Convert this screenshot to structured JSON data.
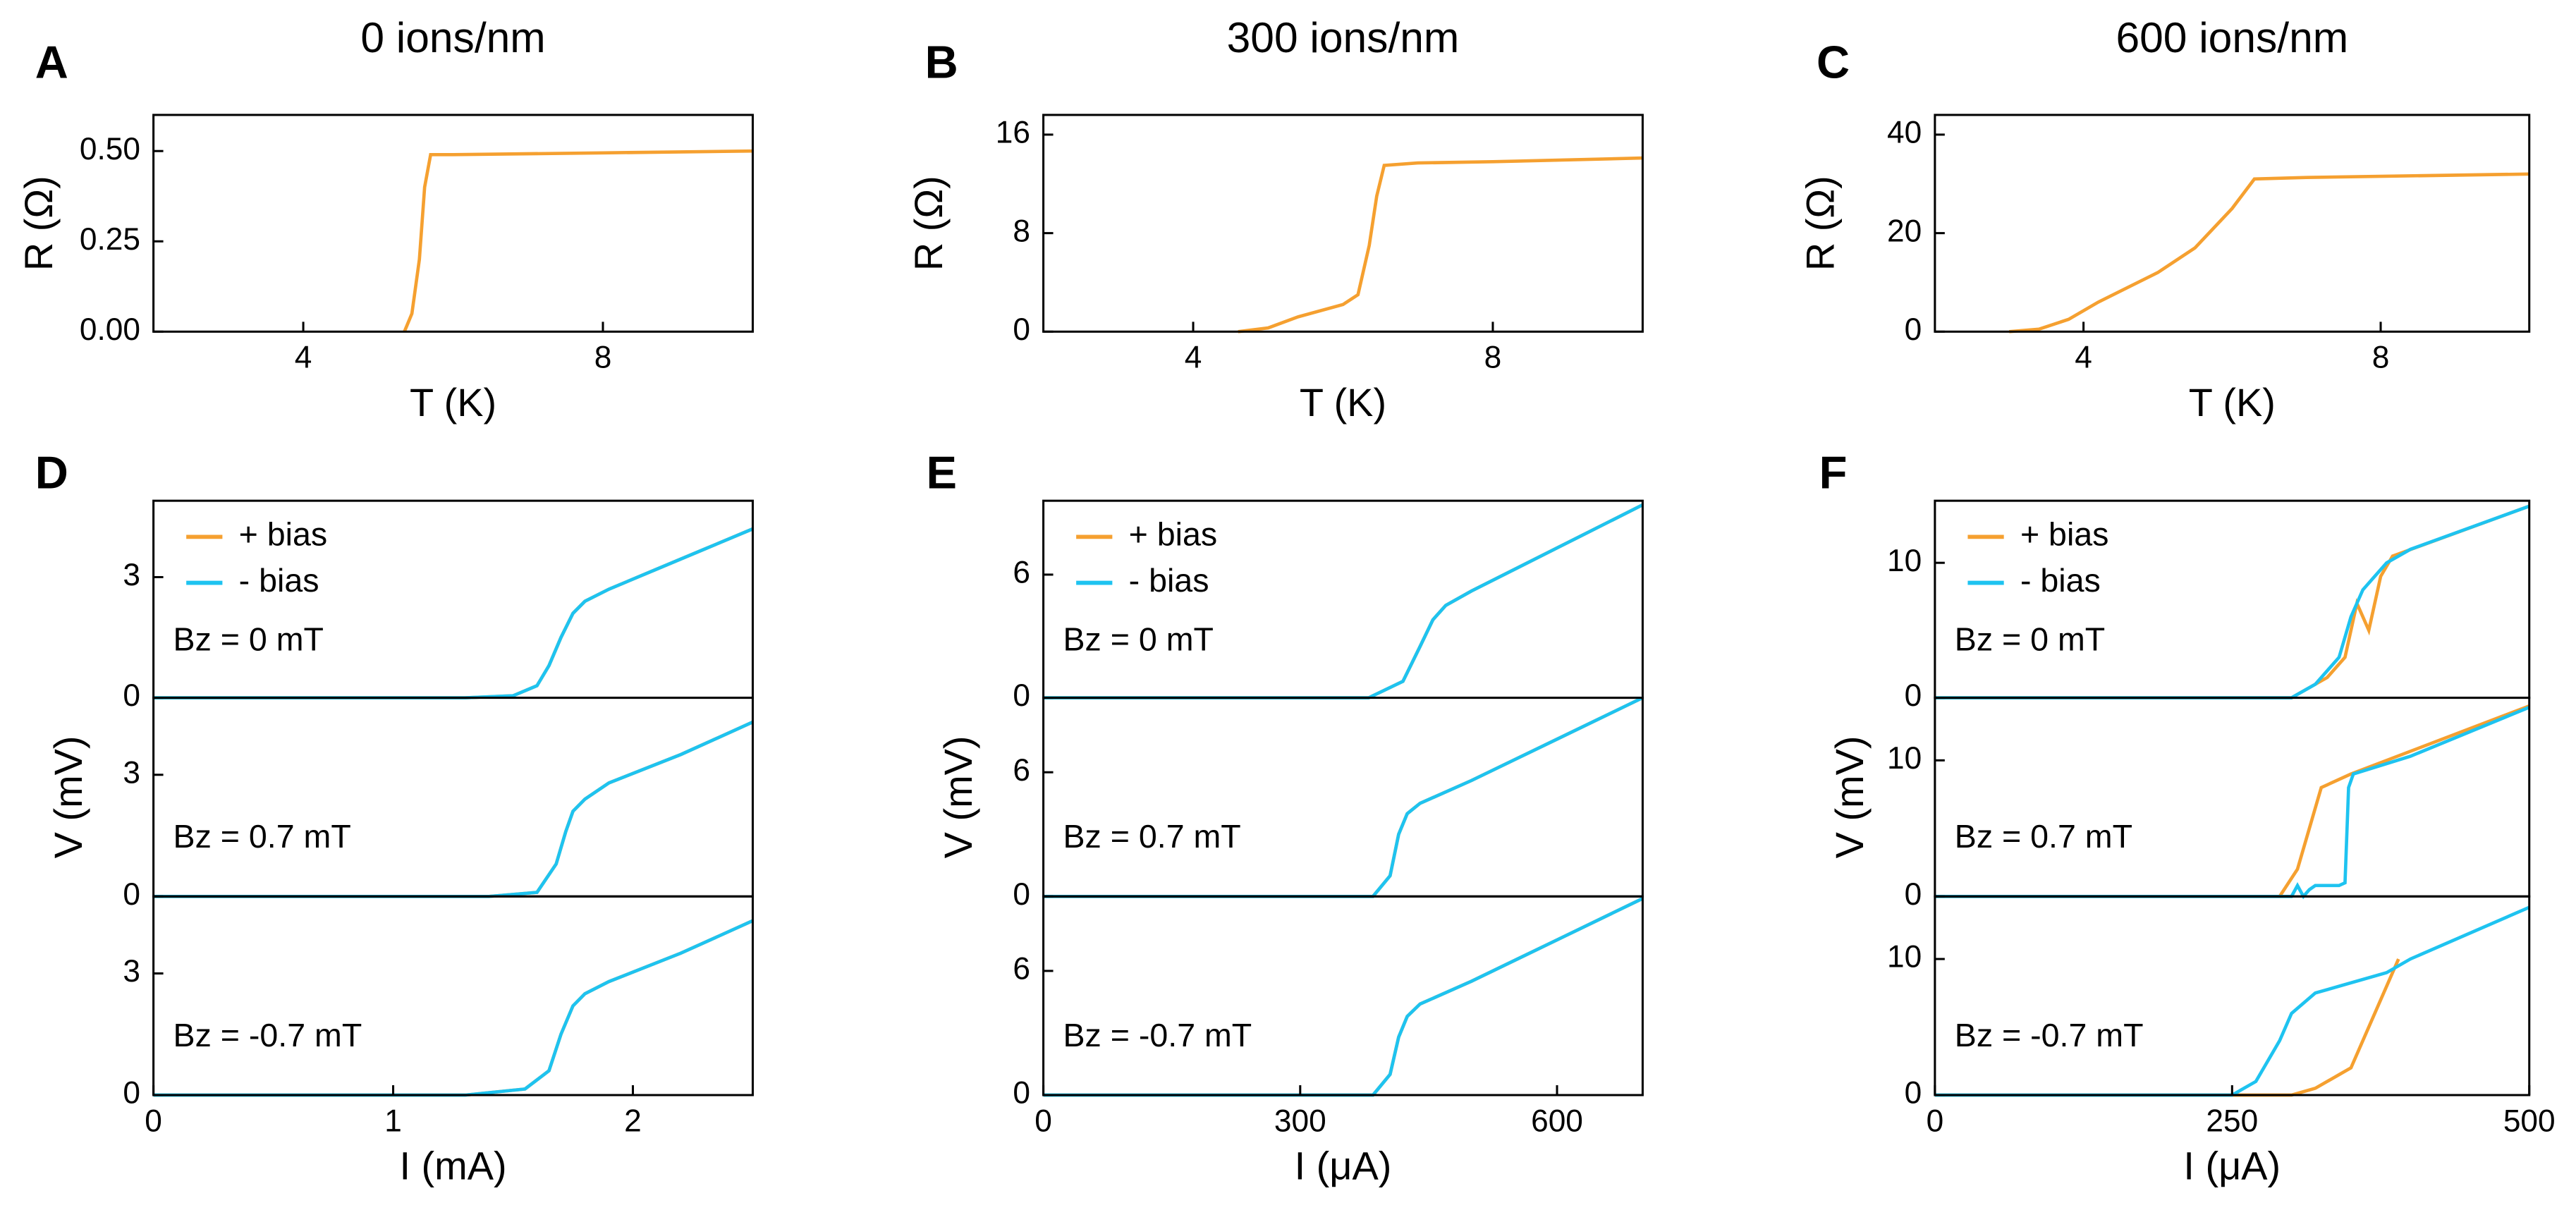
{
  "chart_data": [
    {
      "type": "line",
      "panel": "A",
      "title": "0 ions/nm",
      "x_label": "T (K)",
      "y_label": "R (Ω)",
      "xlim": [
        2,
        10
      ],
      "ylim": [
        0,
        0.6
      ],
      "xticks": [
        4,
        8
      ],
      "yticks": [
        {
          "value": 0,
          "label": "0.00"
        },
        {
          "value": 0.25,
          "label": "0.25"
        },
        {
          "value": 0.5,
          "label": "0.50"
        }
      ],
      "series": [
        {
          "color": "#f5a030",
          "x": [
            5.35,
            5.45,
            5.55,
            5.62,
            5.7,
            6,
            8,
            10
          ],
          "values": [
            0,
            0.05,
            0.2,
            0.4,
            0.49,
            0.49,
            0.495,
            0.5
          ]
        }
      ]
    },
    {
      "type": "line",
      "panel": "B",
      "title": "300 ions/nm",
      "x_label": "T (K)",
      "y_label": "R (Ω)",
      "xlim": [
        2,
        10
      ],
      "ylim": [
        0,
        17.6
      ],
      "xticks": [
        4,
        8
      ],
      "yticks": [
        0,
        8,
        16
      ],
      "series": [
        {
          "color": "#f5a030",
          "x": [
            4.6,
            5,
            5.4,
            6,
            6.2,
            6.35,
            6.45,
            6.55,
            7,
            8,
            10
          ],
          "values": [
            0,
            0.3,
            1.2,
            2.2,
            3,
            7,
            11,
            13.5,
            13.7,
            13.8,
            14.1
          ]
        }
      ]
    },
    {
      "type": "line",
      "panel": "C",
      "title": "600 ions/nm",
      "x_label": "T (K)",
      "y_label": "R (Ω)",
      "xlim": [
        2,
        10
      ],
      "ylim": [
        0,
        44
      ],
      "xticks": [
        4,
        8
      ],
      "yticks": [
        0,
        20,
        40
      ],
      "series": [
        {
          "color": "#f5a030",
          "x": [
            3,
            3.4,
            3.8,
            4.2,
            4.6,
            5,
            5.5,
            6,
            6.3,
            7,
            10
          ],
          "values": [
            0,
            0.5,
            2.5,
            6,
            9,
            12,
            17,
            25,
            31,
            31.3,
            32
          ]
        }
      ]
    },
    {
      "type": "line",
      "panel": "D",
      "annotation": "Bz = 0 mT",
      "xlim": [
        0,
        2.5
      ],
      "ylim": [
        0,
        4.9
      ],
      "yticks": [
        0,
        3
      ],
      "series": [
        {
          "name": "+ bias",
          "color": "#f5a030",
          "x": [
            0,
            1.3,
            1.5,
            1.6,
            1.65,
            1.7,
            1.75,
            1.8,
            1.9,
            2.1,
            2.3,
            2.5
          ],
          "values": [
            0,
            0,
            0.05,
            0.3,
            0.8,
            1.5,
            2.1,
            2.4,
            2.7,
            3.2,
            3.7,
            4.2
          ]
        },
        {
          "name": "- bias",
          "color": "#1ec3f0",
          "x": [
            0,
            1.3,
            1.5,
            1.6,
            1.65,
            1.7,
            1.75,
            1.8,
            1.9,
            2.1,
            2.3,
            2.5
          ],
          "values": [
            0,
            0,
            0.05,
            0.3,
            0.8,
            1.5,
            2.1,
            2.4,
            2.7,
            3.2,
            3.7,
            4.2
          ]
        }
      ]
    },
    {
      "type": "line",
      "annotation": "Bz = 0.7 mT",
      "y_label": "V (mV)",
      "xlim": [
        0,
        2.5
      ],
      "ylim": [
        0,
        4.9
      ],
      "yticks": [
        0,
        3
      ],
      "series": [
        {
          "color": "#f5a030",
          "x": [
            0,
            1.4,
            1.6,
            1.68,
            1.72,
            1.75,
            1.8,
            1.9,
            2.2,
            2.5
          ],
          "values": [
            0,
            0,
            0.1,
            0.8,
            1.6,
            2.1,
            2.4,
            2.8,
            3.5,
            4.3
          ]
        },
        {
          "color": "#1ec3f0",
          "x": [
            0,
            1.4,
            1.6,
            1.68,
            1.72,
            1.75,
            1.8,
            1.9,
            2.2,
            2.5
          ],
          "values": [
            0,
            0,
            0.1,
            0.8,
            1.6,
            2.1,
            2.4,
            2.8,
            3.5,
            4.3
          ]
        }
      ]
    },
    {
      "type": "line",
      "annotation": "Bz = -0.7 mT",
      "x_label": "I (mA)",
      "xlim": [
        0,
        2.5
      ],
      "ylim": [
        0,
        4.9
      ],
      "xticks": [
        0,
        1,
        2
      ],
      "yticks": [
        0,
        3
      ],
      "series": [
        {
          "color": "#f5a030",
          "x": [
            0,
            1.3,
            1.55,
            1.65,
            1.7,
            1.75,
            1.8,
            1.9,
            2.2,
            2.5
          ],
          "values": [
            0,
            0,
            0.15,
            0.6,
            1.5,
            2.2,
            2.5,
            2.8,
            3.5,
            4.3
          ]
        },
        {
          "color": "#1ec3f0",
          "x": [
            0,
            1.3,
            1.55,
            1.65,
            1.7,
            1.75,
            1.8,
            1.9,
            2.2,
            2.5
          ],
          "values": [
            0,
            0,
            0.15,
            0.6,
            1.5,
            2.2,
            2.5,
            2.8,
            3.5,
            4.3
          ]
        }
      ]
    },
    {
      "type": "line",
      "panel": "E",
      "annotation": "Bz = 0 mT",
      "xlim": [
        0,
        700
      ],
      "ylim": [
        0,
        9.6
      ],
      "yticks": [
        0,
        6
      ],
      "series": [
        {
          "name": "+ bias",
          "color": "#f5a030",
          "x": [
            0,
            380,
            420,
            440,
            455,
            470,
            500,
            600,
            700
          ],
          "values": [
            0,
            0,
            0.8,
            2.5,
            3.8,
            4.5,
            5.2,
            7.3,
            9.4
          ]
        },
        {
          "name": "- bias",
          "color": "#1ec3f0",
          "x": [
            0,
            380,
            420,
            440,
            455,
            470,
            500,
            600,
            700
          ],
          "values": [
            0,
            0,
            0.8,
            2.5,
            3.8,
            4.5,
            5.2,
            7.3,
            9.4
          ]
        }
      ]
    },
    {
      "type": "line",
      "annotation": "Bz = 0.7 mT",
      "y_label": "V (mV)",
      "xlim": [
        0,
        700
      ],
      "ylim": [
        0,
        9.6
      ],
      "yticks": [
        0,
        6
      ],
      "series": [
        {
          "color": "#f5a030",
          "x": [
            0,
            385,
            405,
            415,
            425,
            440,
            500,
            600,
            700
          ],
          "values": [
            0,
            0,
            1,
            3,
            4,
            4.5,
            5.6,
            7.6,
            9.6
          ]
        },
        {
          "color": "#1ec3f0",
          "x": [
            0,
            385,
            405,
            415,
            425,
            440,
            500,
            600,
            700
          ],
          "values": [
            0,
            0,
            1,
            3,
            4,
            4.5,
            5.6,
            7.6,
            9.6
          ]
        }
      ]
    },
    {
      "type": "line",
      "annotation": "Bz = -0.7 mT",
      "x_label": "I (μA)",
      "xlim": [
        0,
        700
      ],
      "ylim": [
        0,
        9.6
      ],
      "xticks": [
        0,
        300,
        600
      ],
      "yticks": [
        0,
        6
      ],
      "series": [
        {
          "color": "#f5a030",
          "x": [
            0,
            385,
            405,
            415,
            425,
            440,
            500,
            600,
            700
          ],
          "values": [
            0,
            0,
            1,
            2.8,
            3.8,
            4.4,
            5.5,
            7.5,
            9.5
          ]
        },
        {
          "color": "#1ec3f0",
          "x": [
            0,
            385,
            405,
            415,
            425,
            440,
            500,
            600,
            700
          ],
          "values": [
            0,
            0,
            1,
            2.8,
            3.8,
            4.4,
            5.5,
            7.5,
            9.5
          ]
        }
      ]
    },
    {
      "type": "line",
      "panel": "F",
      "annotation": "Bz = 0 mT",
      "xlim": [
        0,
        500
      ],
      "ylim": [
        0,
        14.6
      ],
      "yticks": [
        0,
        10
      ],
      "series": [
        {
          "name": "+ bias",
          "color": "#f5a030",
          "x": [
            0,
            300,
            330,
            345,
            355,
            365,
            375,
            385,
            500
          ],
          "values": [
            0,
            0,
            1.5,
            3,
            7,
            5,
            9,
            10.5,
            14.2
          ]
        },
        {
          "name": "- bias",
          "color": "#1ec3f0",
          "x": [
            0,
            300,
            320,
            340,
            350,
            360,
            370,
            380,
            400,
            500
          ],
          "values": [
            0,
            0,
            1,
            3,
            6,
            8,
            9,
            10,
            11,
            14.2
          ]
        }
      ]
    },
    {
      "type": "line",
      "annotation": "Bz = 0.7 mT",
      "y_label": "V (mV)",
      "xlim": [
        0,
        500
      ],
      "ylim": [
        0,
        14.6
      ],
      "yticks": [
        0,
        10
      ],
      "series": [
        {
          "color": "#f5a030",
          "x": [
            0,
            290,
            305,
            315,
            325,
            345,
            350,
            500
          ],
          "values": [
            0,
            0,
            2,
            5,
            8,
            8.8,
            9,
            14
          ]
        },
        {
          "color": "#1ec3f0",
          "x": [
            0,
            300,
            305,
            310,
            315,
            320,
            340,
            345,
            348,
            352,
            400,
            500
          ],
          "values": [
            0,
            0,
            0.8,
            0,
            0.5,
            0.8,
            0.8,
            1,
            8,
            9,
            10.3,
            13.9
          ]
        }
      ]
    },
    {
      "type": "line",
      "annotation": "Bz = -0.7 mT",
      "x_label": "I (μA)",
      "xlim": [
        0,
        500
      ],
      "ylim": [
        0,
        14.6
      ],
      "xticks": [
        0,
        250,
        500
      ],
      "yticks": [
        0,
        10
      ],
      "series": [
        {
          "color": "#f5a030",
          "x": [
            0,
            300,
            320,
            340,
            350,
            360,
            375,
            390
          ],
          "values": [
            0,
            0,
            0.5,
            1.5,
            2,
            4,
            7,
            10
          ]
        },
        {
          "color": "#1ec3f0",
          "x": [
            0,
            250,
            270,
            290,
            300,
            320,
            340,
            360,
            380,
            400,
            500
          ],
          "values": [
            0,
            0,
            1,
            4,
            6,
            7.5,
            8,
            8.5,
            9,
            10,
            13.8
          ]
        }
      ]
    }
  ]
}
